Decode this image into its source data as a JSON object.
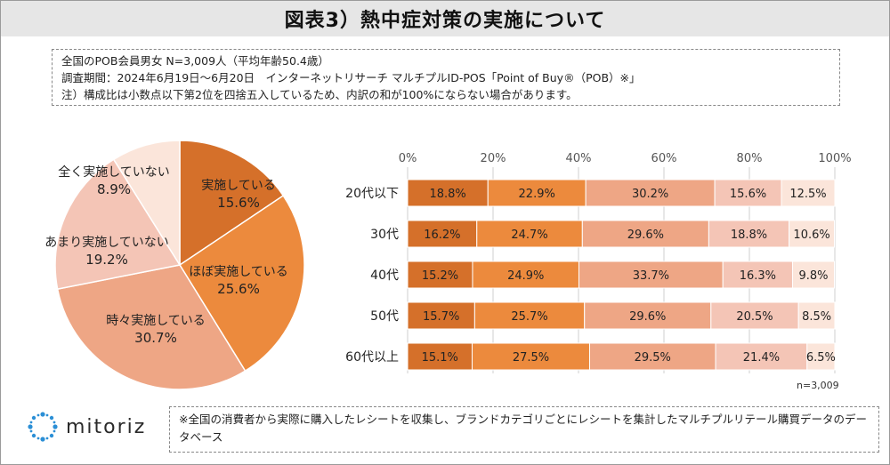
{
  "header": {
    "title": "図表3）熱中症対策の実施について"
  },
  "notes": {
    "line1": "全国のPOB会員男女 N=3,009人（平均年齢50.4歳）",
    "line2": "調査期間：2024年6月19日～6月20日　インターネットリサーチ マルチプルID-POS「Point of Buy®（POB）※」",
    "line3": "注）構成比は小数点以下第2位を四捨五入しているため、内訳の和が100%にならない場合があります。"
  },
  "footer": {
    "logo_text": "mitoriz",
    "note": "※全国の消費者から実際に購入したレシートを収集し、ブランドカテゴリごとにレシートを集計したマルチプルリテール購買データのデータベース"
  },
  "colors": [
    "#d5702a",
    "#ec8a3d",
    "#eea685",
    "#f4c5b6",
    "#fbe5da"
  ],
  "chart_data": [
    {
      "type": "pie",
      "categories": [
        "実施している",
        "ほぼ実施している",
        "時々実施している",
        "あまり実施していない",
        "全く実施していない"
      ],
      "values": [
        15.6,
        25.6,
        30.7,
        19.2,
        8.9
      ],
      "value_labels": [
        "15.6%",
        "25.6%",
        "30.7%",
        "19.2%",
        "8.9%"
      ]
    },
    {
      "type": "bar",
      "orientation": "horizontal",
      "stacked": true,
      "categories": [
        "20代以下",
        "30代",
        "40代",
        "50代",
        "60代以上"
      ],
      "xlim": [
        0,
        100
      ],
      "ticks": [
        "0%",
        "20%",
        "40%",
        "60%",
        "80%",
        "100%"
      ],
      "series": [
        {
          "values": [
            18.8,
            16.2,
            15.2,
            15.7,
            15.1
          ],
          "labels": [
            "18.8%",
            "16.2%",
            "15.2%",
            "15.7%",
            "15.1%"
          ]
        },
        {
          "values": [
            22.9,
            24.7,
            24.9,
            25.7,
            27.5
          ],
          "labels": [
            "22.9%",
            "24.7%",
            "24.9%",
            "25.7%",
            "27.5%"
          ]
        },
        {
          "values": [
            30.2,
            29.6,
            33.7,
            29.6,
            29.5
          ],
          "labels": [
            "30.2%",
            "29.6%",
            "33.7%",
            "29.6%",
            "29.5%"
          ]
        },
        {
          "values": [
            15.6,
            18.8,
            16.3,
            20.5,
            21.4
          ],
          "labels": [
            "15.6%",
            "18.8%",
            "16.3%",
            "20.5%",
            "21.4%"
          ]
        },
        {
          "values": [
            12.5,
            10.6,
            9.8,
            8.5,
            6.5
          ],
          "labels": [
            "12.5%",
            "10.6%",
            "9.8%",
            "8.5%",
            "6.5%"
          ]
        }
      ],
      "annotation": "n=3,009"
    }
  ]
}
